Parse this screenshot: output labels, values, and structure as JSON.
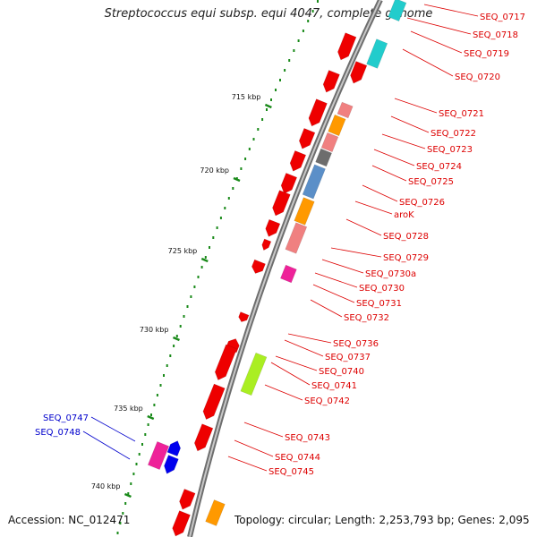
{
  "title": "Streptococcus equi subsp. equi 4047, complete genome",
  "accession": "Accession: NC_012471",
  "topology": "Topology: circular; Length: 2,253,793 bp; Genes: 2,095",
  "colors": {
    "backbone": "#808080",
    "tick": "#1a8a1a",
    "label_red": "#dd0000",
    "label_blue": "#0000cc",
    "gene_red": "#ee0000",
    "salmon": "#f08080",
    "orange": "#ff9900",
    "cyan": "#22cccc",
    "steelblue": "#5b8fc8",
    "gray": "#6d6d6d",
    "magenta": "#ee2299",
    "blue": "#0000ee",
    "lime": "#aaee22"
  },
  "kbp_labels": [
    "715 kbp",
    "720 kbp",
    "725 kbp",
    "730 kbp",
    "735 kbp",
    "740 kbp"
  ],
  "gene_labels_right": [
    "SEQ_0717",
    "SEQ_0718",
    "SEQ_0719",
    "SEQ_0720",
    "SEQ_0721",
    "SEQ_0722",
    "SEQ_0723",
    "SEQ_0724",
    "SEQ_0725",
    "SEQ_0726",
    "aroK",
    "SEQ_0728",
    "SEQ_0729",
    "SEQ_0730a",
    "SEQ_0730",
    "SEQ_0731",
    "SEQ_0732",
    "SEQ_0736",
    "SEQ_0737",
    "SEQ_0740",
    "SEQ_0741",
    "SEQ_0742",
    "SEQ_0743",
    "SEQ_0744",
    "SEQ_0745"
  ],
  "gene_labels_left": [
    "SEQ_0747",
    "SEQ_0748"
  ]
}
